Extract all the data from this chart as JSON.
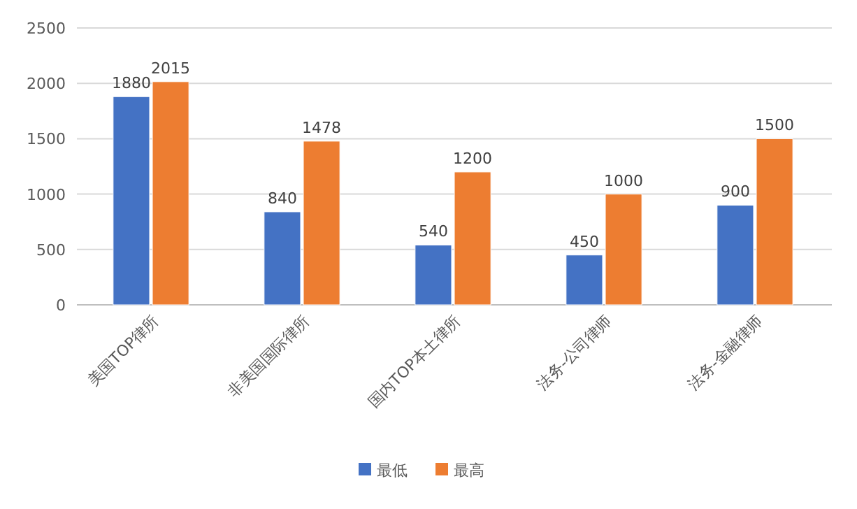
{
  "chart_data": {
    "type": "bar",
    "categories": [
      "美国TOP律所",
      "非美国国际律所",
      "国内TOP本土律所",
      "法务-公司律师",
      "法务-金融律师"
    ],
    "series": [
      {
        "name": "最低",
        "color": "#4472c4",
        "values": [
          1880,
          840,
          540,
          450,
          900
        ]
      },
      {
        "name": "最高",
        "color": "#ed7d31",
        "values": [
          2015,
          1478,
          1200,
          1000,
          1500
        ]
      }
    ],
    "ylim": [
      0,
      2500
    ],
    "yticks": [
      0,
      500,
      1000,
      1500,
      2000,
      2500
    ],
    "grid": "y",
    "legend": "bottom",
    "data_labels": true
  }
}
